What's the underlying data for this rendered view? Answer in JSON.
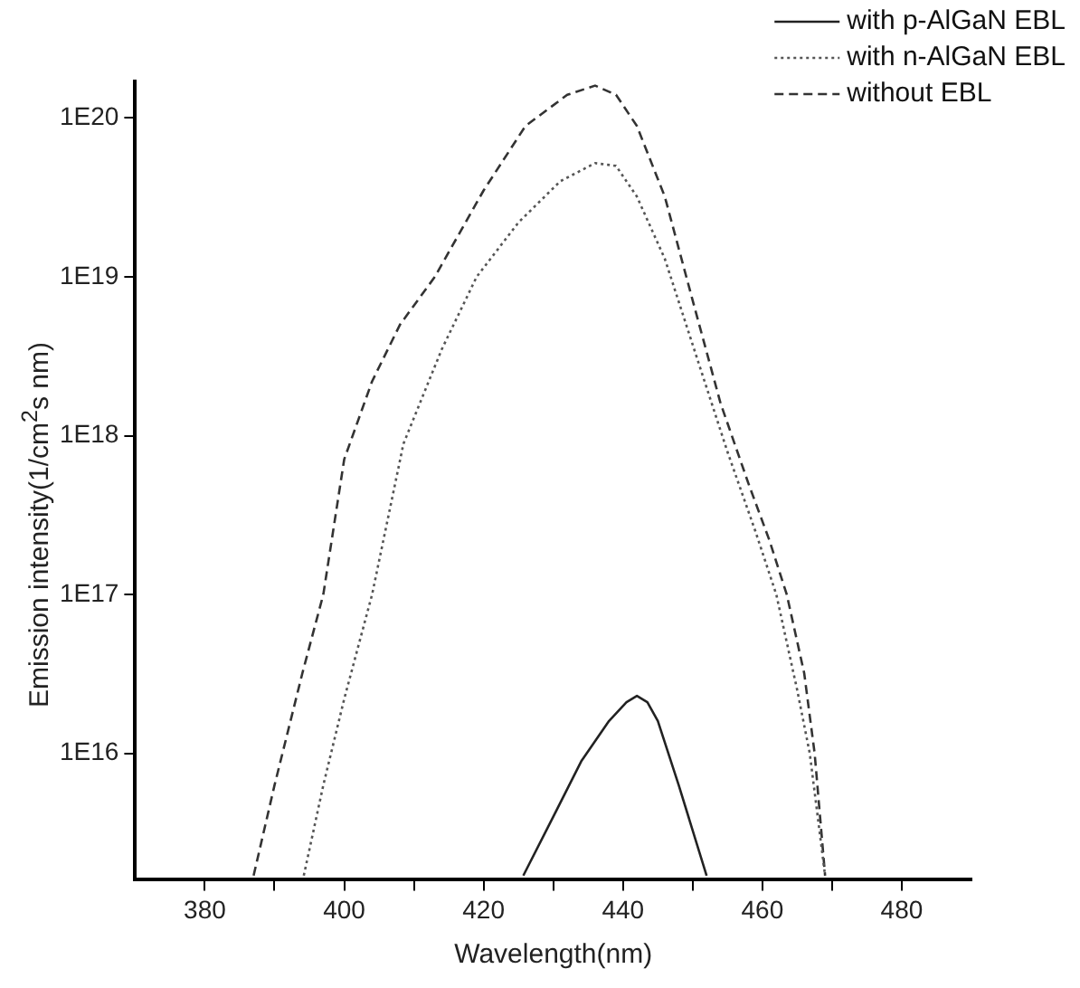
{
  "chart_data": {
    "type": "line",
    "xlabel": "Wavelength(nm)",
    "ylabel": "Emission intensity(1/cm$^{2}$s nm)",
    "log": "y",
    "grid": false,
    "legend": "top right",
    "marker": "none",
    "xlim": [
      370,
      490
    ],
    "xticks": [
      380,
      {
        "value": 390,
        "label": null
      },
      400,
      {
        "value": 410,
        "label": null
      },
      420,
      {
        "value": 430,
        "label": null
      },
      440,
      {
        "value": 450,
        "label": null
      },
      460,
      {
        "value": 470,
        "label": null
      },
      480
    ],
    "ylim": [
      1600000000000000.0,
      1.7e+20
    ],
    "yticks": [
      {
        "value": 1e+16,
        "label": "1E16"
      },
      {
        "value": 1e+17,
        "label": "1E17"
      },
      {
        "value": 1e+18,
        "label": "1E18"
      },
      {
        "value": 1e+19,
        "label": "1E19"
      },
      {
        "value": 1e+20,
        "label": "1E20"
      }
    ],
    "series": [
      {
        "name": "with p-AlGaN EBL",
        "color": "#222222",
        "line_style": "solid",
        "x": [
          425.7,
          430,
          434,
          438,
          440.5,
          442,
          443.5,
          445,
          448,
          452
        ],
        "values": [
          1700000000000000.0,
          4000000000000000.0,
          8900000000000000.0,
          1.6e+16,
          2.1e+16,
          2.3e+16,
          2.1e+16,
          1.6e+16,
          6300000000000000.0,
          1700000000000000.0
        ]
      },
      {
        "name": "with n-AlGaN EBL",
        "color": "#555555",
        "line_style": "dotted",
        "x": [
          394.2,
          397,
          400,
          404,
          408.5,
          414,
          419,
          425,
          431,
          436,
          439,
          442,
          446,
          450.6,
          455,
          459,
          462,
          465,
          466.8,
          469
        ],
        "values": [
          1700000000000000.0,
          6300000000000000.0,
          2.2e+16,
          1e+17,
          8.9e+17,
          3.5e+18,
          1e+19,
          2.2e+19,
          4e+19,
          5.2e+19,
          5e+19,
          3.2e+19,
          1.3e+19,
          3.1e+18,
          7.9e+17,
          2.5e+17,
          1e+17,
          2.5e+16,
          1e+16,
          1700000000000000.0
        ]
      },
      {
        "name": "without EBL",
        "color": "#333333",
        "line_style": "dashed",
        "x": [
          387,
          390,
          394,
          397,
          400,
          404,
          408,
          413,
          420,
          426,
          432,
          436,
          439,
          442,
          446,
          450,
          454,
          458,
          461,
          463.5,
          466,
          467.5,
          469
        ],
        "values": [
          1700000000000000.0,
          6300000000000000.0,
          3.2e+16,
          1e+17,
          7.1e+17,
          2.2e+18,
          5e+18,
          1e+19,
          3.5e+19,
          8.9e+19,
          1.4e+20,
          1.6e+20,
          1.4e+20,
          8.9e+19,
          3.2e+19,
          7.1e+18,
          1.6e+18,
          5e+17,
          2.2e+17,
          1e+17,
          3.2e+16,
          1e+16,
          1700000000000000.0
        ]
      }
    ]
  }
}
